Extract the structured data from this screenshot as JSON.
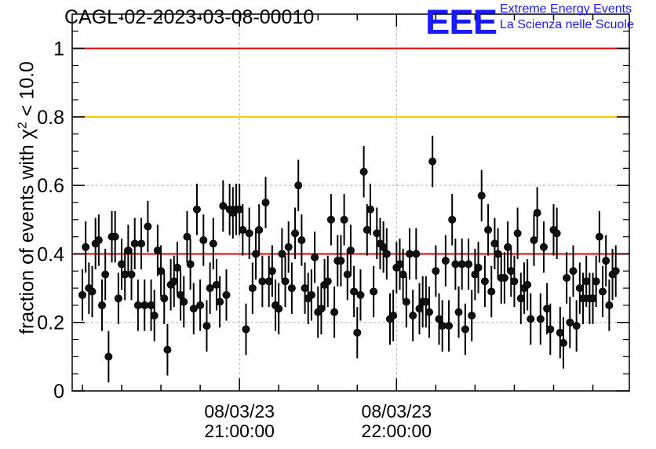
{
  "chart_data": {
    "type": "scatter",
    "title": "CAGL-02-2023-03-08-00010",
    "ylabel_main": "fraction of events with χ",
    "ylabel_sup": "2",
    "ylabel_tail": " < 10.0",
    "ylim": [
      0,
      1.1
    ],
    "yticks": [
      0,
      0.2,
      0.4,
      0.6,
      0.8,
      1
    ],
    "ytick_labels": [
      "0",
      "0.2",
      "0.4",
      "0.6",
      "0.8",
      "1"
    ],
    "xticks": [
      {
        "date": "08/03/23",
        "time": "21:00:00",
        "index": 48
      },
      {
        "date": "08/03/23",
        "time": "22:00:00",
        "index": 96
      }
    ],
    "reference_lines": [
      {
        "y": 1.0,
        "color": "#e00000"
      },
      {
        "y": 0.8,
        "color": "#ffc000"
      },
      {
        "y": 0.4,
        "color": "#e00000"
      }
    ],
    "grid": true,
    "error_bar": 0.075,
    "values": [
      0.28,
      0.42,
      0.3,
      0.29,
      0.43,
      0.44,
      0.25,
      0.34,
      0.1,
      0.45,
      0.45,
      0.27,
      0.37,
      0.34,
      0.41,
      0.34,
      0.43,
      0.25,
      0.43,
      0.25,
      0.48,
      0.25,
      0.22,
      0.41,
      0.35,
      0.27,
      0.12,
      0.31,
      0.32,
      0.36,
      0.28,
      0.26,
      0.45,
      0.37,
      0.24,
      0.53,
      0.25,
      0.44,
      0.19,
      0.3,
      0.43,
      0.31,
      0.26,
      0.54,
      0.28,
      0.53,
      0.52,
      0.53,
      0.53,
      0.47,
      0.18,
      0.46,
      0.3,
      0.4,
      0.47,
      0.32,
      0.55,
      0.32,
      0.35,
      0.25,
      0.24,
      0.4,
      0.32,
      0.42,
      0.3,
      0.46,
      0.6,
      0.44,
      0.3,
      0.27,
      0.28,
      0.39,
      0.23,
      0.24,
      0.31,
      0.32,
      0.5,
      0.23,
      0.38,
      0.38,
      0.5,
      0.34,
      0.41,
      0.29,
      0.17,
      0.28,
      0.64,
      0.47,
      0.53,
      0.29,
      0.46,
      0.43,
      0.42,
      0.4,
      0.21,
      0.22,
      0.36,
      0.37,
      0.34,
      0.26,
      0.4,
      0.22,
      0.4,
      0.24,
      0.26,
      0.26,
      0.23,
      0.67,
      0.35,
      0.21,
      0.19,
      0.38,
      0.19,
      0.5,
      0.37,
      0.23,
      0.37,
      0.18,
      0.37,
      0.22,
      0.34,
      0.36,
      0.57,
      0.32,
      0.47,
      0.29,
      0.43,
      0.4,
      0.33,
      0.33,
      0.42,
      0.35,
      0.32,
      0.46,
      0.27,
      0.3,
      0.31,
      0.21,
      0.44,
      0.52,
      0.21,
      0.42,
      0.24,
      0.18,
      0.47,
      0.46,
      0.17,
      0.14,
      0.33,
      0.2,
      0.35,
      0.19,
      0.3,
      0.27,
      0.32,
      0.27,
      0.27,
      0.32,
      0.45,
      0.29,
      0.38,
      0.25,
      0.34,
      0.35
    ]
  },
  "logo": {
    "mark": "EEE",
    "line1": "Extreme Energy Events",
    "line2": "La Scienza nelle Scuole"
  }
}
